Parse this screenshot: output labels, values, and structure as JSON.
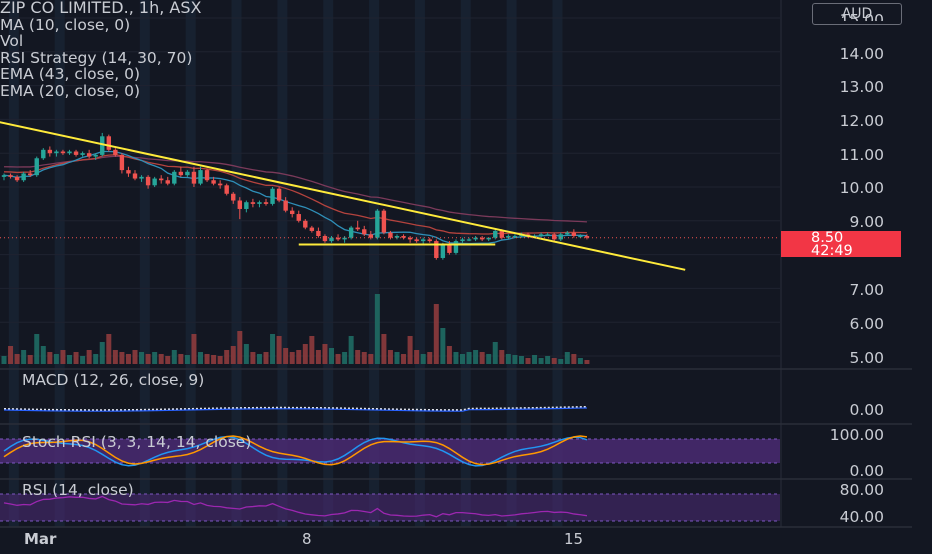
{
  "legend": {
    "symbol": "ZIP CO LIMITED., 1h, ASX",
    "indicators": [
      "MA (10, close, 0)",
      "Vol",
      "RSI Strategy (14, 30, 70)",
      "EMA (43, close, 0)",
      "EMA (20, close, 0)"
    ]
  },
  "currency": "AUD",
  "price_axis": [
    "14.00",
    "13.00",
    "12.00",
    "11.00",
    "10.00",
    "9.00",
    "7.00",
    "6.00",
    "5.00"
  ],
  "price_axis_top_partial": "15.00",
  "last_price": {
    "price": "8.50",
    "countdown": "42:49",
    "color": "#f23645"
  },
  "panes": {
    "macd": {
      "label": "MACD (12, 26, close, 9)",
      "axis": [
        "0.00"
      ]
    },
    "stoch_rsi": {
      "label": "Stoch RSI (3, 3, 14, 14, close)",
      "axis": [
        "100.00",
        "0.00"
      ]
    },
    "rsi": {
      "label": "RSI (14, close)",
      "axis": [
        "80.00",
        "40.00"
      ]
    }
  },
  "time_axis": [
    "Mar",
    "8",
    "15"
  ],
  "colors": {
    "background": "#131722",
    "up": "#26a69a",
    "down": "#ef5350",
    "trendline": "#ffeb3b",
    "oscillator_band": "#4a2a72",
    "session_stripe": "#1b2a3d"
  },
  "chart_data": {
    "type": "candlestick",
    "title": "ZIP CO LIMITED., 1h, ASX",
    "price_range": [
      4.8,
      15.2
    ],
    "candles_ohlc": [
      [
        10.3,
        10.4,
        10.2,
        10.35
      ],
      [
        10.35,
        10.4,
        10.25,
        10.3
      ],
      [
        10.3,
        10.35,
        10.15,
        10.2
      ],
      [
        10.2,
        10.45,
        10.15,
        10.4
      ],
      [
        10.4,
        10.5,
        10.3,
        10.35
      ],
      [
        10.35,
        10.9,
        10.3,
        10.85
      ],
      [
        10.85,
        11.15,
        10.8,
        11.1
      ],
      [
        11.1,
        11.2,
        10.9,
        11.0
      ],
      [
        11.0,
        11.1,
        10.9,
        11.05
      ],
      [
        11.05,
        11.1,
        10.95,
        11.0
      ],
      [
        11.0,
        11.1,
        10.95,
        11.05
      ],
      [
        11.05,
        11.1,
        10.9,
        10.95
      ],
      [
        10.95,
        11.05,
        10.9,
        11.0
      ],
      [
        11.0,
        11.1,
        10.85,
        10.9
      ],
      [
        10.9,
        11.0,
        10.8,
        10.95
      ],
      [
        10.95,
        11.6,
        10.9,
        11.5
      ],
      [
        11.5,
        11.55,
        11.05,
        11.1
      ],
      [
        11.1,
        11.15,
        10.9,
        10.95
      ],
      [
        10.95,
        11.0,
        10.4,
        10.5
      ],
      [
        10.5,
        10.6,
        10.3,
        10.4
      ],
      [
        10.4,
        10.5,
        10.2,
        10.25
      ],
      [
        10.25,
        10.35,
        10.15,
        10.3
      ],
      [
        10.3,
        10.35,
        9.95,
        10.05
      ],
      [
        10.05,
        10.3,
        10.0,
        10.25
      ],
      [
        10.25,
        10.35,
        10.1,
        10.2
      ],
      [
        10.2,
        10.3,
        10.05,
        10.1
      ],
      [
        10.1,
        10.5,
        10.05,
        10.45
      ],
      [
        10.45,
        10.6,
        10.3,
        10.35
      ],
      [
        10.35,
        10.5,
        10.3,
        10.45
      ],
      [
        10.45,
        10.6,
        10.0,
        10.1
      ],
      [
        10.1,
        10.6,
        10.05,
        10.5
      ],
      [
        10.5,
        10.55,
        10.15,
        10.2
      ],
      [
        10.2,
        10.3,
        10.05,
        10.1
      ],
      [
        10.1,
        10.2,
        9.95,
        10.05
      ],
      [
        10.05,
        10.1,
        9.75,
        9.8
      ],
      [
        9.8,
        9.85,
        9.5,
        9.6
      ],
      [
        9.6,
        9.7,
        9.05,
        9.35
      ],
      [
        9.35,
        9.6,
        9.25,
        9.55
      ],
      [
        9.55,
        9.65,
        9.4,
        9.5
      ],
      [
        9.5,
        9.6,
        9.4,
        9.55
      ],
      [
        9.55,
        9.65,
        9.45,
        9.5
      ],
      [
        9.5,
        10.0,
        9.45,
        9.95
      ],
      [
        9.95,
        10.0,
        9.55,
        9.6
      ],
      [
        9.6,
        9.7,
        9.25,
        9.3
      ],
      [
        9.3,
        9.4,
        9.1,
        9.2
      ],
      [
        9.2,
        9.3,
        8.95,
        9.0
      ],
      [
        9.0,
        9.05,
        8.75,
        8.8
      ],
      [
        8.8,
        8.85,
        8.65,
        8.7
      ],
      [
        8.7,
        8.8,
        8.5,
        8.55
      ],
      [
        8.55,
        8.6,
        8.35,
        8.4
      ],
      [
        8.4,
        8.55,
        8.35,
        8.5
      ],
      [
        8.5,
        8.6,
        8.4,
        8.45
      ],
      [
        8.45,
        8.55,
        8.35,
        8.5
      ],
      [
        8.5,
        8.85,
        8.45,
        8.8
      ],
      [
        8.8,
        9.0,
        8.7,
        8.75
      ],
      [
        8.75,
        8.85,
        8.55,
        8.6
      ],
      [
        8.6,
        8.7,
        8.45,
        8.5
      ],
      [
        8.5,
        9.35,
        8.45,
        9.3
      ],
      [
        9.3,
        9.35,
        8.6,
        8.65
      ],
      [
        8.65,
        8.7,
        8.45,
        8.5
      ],
      [
        8.5,
        8.6,
        8.45,
        8.55
      ],
      [
        8.55,
        8.6,
        8.45,
        8.5
      ],
      [
        8.5,
        8.55,
        8.35,
        8.45
      ],
      [
        8.45,
        8.5,
        8.35,
        8.4
      ],
      [
        8.4,
        8.5,
        8.3,
        8.45
      ],
      [
        8.45,
        8.5,
        8.35,
        8.4
      ],
      [
        8.4,
        8.45,
        7.85,
        7.9
      ],
      [
        7.9,
        8.35,
        7.85,
        8.3
      ],
      [
        8.3,
        8.4,
        8.0,
        8.05
      ],
      [
        8.05,
        8.45,
        8.0,
        8.4
      ],
      [
        8.4,
        8.5,
        8.35,
        8.45
      ],
      [
        8.45,
        8.5,
        8.4,
        8.45
      ],
      [
        8.45,
        8.55,
        8.4,
        8.5
      ],
      [
        8.5,
        8.55,
        8.4,
        8.45
      ],
      [
        8.45,
        8.5,
        8.4,
        8.5
      ],
      [
        8.5,
        8.75,
        8.45,
        8.7
      ],
      [
        8.7,
        8.75,
        8.45,
        8.5
      ],
      [
        8.5,
        8.6,
        8.45,
        8.55
      ],
      [
        8.55,
        8.6,
        8.5,
        8.55
      ],
      [
        8.55,
        8.65,
        8.5,
        8.6
      ],
      [
        8.6,
        8.65,
        8.5,
        8.55
      ],
      [
        8.55,
        8.6,
        8.5,
        8.55
      ],
      [
        8.55,
        8.65,
        8.5,
        8.6
      ],
      [
        8.6,
        8.65,
        8.55,
        8.6
      ],
      [
        8.6,
        8.65,
        8.4,
        8.45
      ],
      [
        8.45,
        8.65,
        8.4,
        8.6
      ],
      [
        8.6,
        8.7,
        8.55,
        8.65
      ],
      [
        8.65,
        8.75,
        8.5,
        8.55
      ],
      [
        8.55,
        8.6,
        8.5,
        8.55
      ],
      [
        8.55,
        8.6,
        8.45,
        8.5
      ]
    ],
    "volume": [
      8,
      18,
      10,
      14,
      9,
      30,
      18,
      12,
      10,
      14,
      9,
      12,
      8,
      14,
      10,
      22,
      30,
      14,
      12,
      10,
      14,
      12,
      10,
      12,
      10,
      8,
      14,
      10,
      9,
      30,
      12,
      10,
      9,
      8,
      14,
      18,
      33,
      20,
      12,
      10,
      12,
      30,
      28,
      16,
      12,
      14,
      20,
      28,
      14,
      20,
      16,
      10,
      12,
      28,
      14,
      12,
      10,
      70,
      30,
      14,
      12,
      10,
      28,
      14,
      10,
      12,
      60,
      36,
      18,
      12,
      10,
      12,
      14,
      12,
      10,
      22,
      14,
      10,
      9,
      8,
      6,
      9,
      6,
      8,
      6,
      5,
      12,
      10,
      6,
      4
    ],
    "trendline": {
      "from": [
        -5,
        12.1
      ],
      "to": [
        104,
        7.55
      ]
    },
    "support_line": {
      "price": 8.3,
      "from": 45,
      "to": 75
    },
    "session_stripes": [
      1.5,
      8.5,
      21.5,
      28.5,
      35.5,
      42.5,
      49.5,
      56.5,
      63.5,
      70.5,
      77.5,
      84.5
    ]
  }
}
